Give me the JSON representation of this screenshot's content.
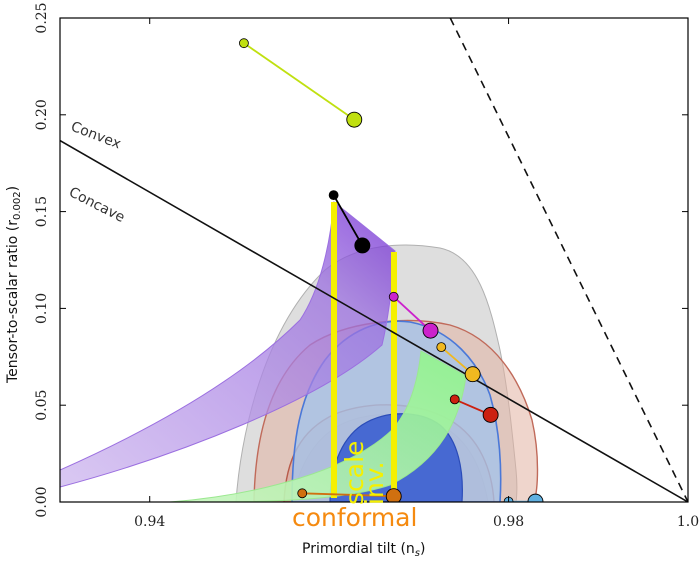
{
  "chart_data": {
    "type": "scatter",
    "xlim": [
      0.93,
      1.0
    ],
    "ylim": [
      0.0,
      0.25
    ],
    "x_ticks": [
      {
        "value": 0.94,
        "label": "0.94"
      },
      {
        "value": 0.98,
        "label": "0.98"
      },
      {
        "value": 1.0,
        "label": "1.0"
      }
    ],
    "y_ticks": [
      {
        "value": 0.0,
        "label": "0.00"
      },
      {
        "value": 0.05,
        "label": "0.05"
      },
      {
        "value": 0.1,
        "label": "0.10"
      },
      {
        "value": 0.15,
        "label": "0.15"
      },
      {
        "value": 0.2,
        "label": "0.20"
      },
      {
        "value": 0.25,
        "label": "0.25"
      }
    ],
    "xlabel": "Primordial tilt (n",
    "xlabel_sub": "s",
    "xlabel_end": ")",
    "ylabel": "Tensor-to-scalar ratio (r",
    "ylabel_sub": "0.002",
    "ylabel_end": ")",
    "grid": false,
    "reference_lines": [
      {
        "label": "Convex",
        "style": "solid",
        "points": [
          [
            0.93,
            0.1867
          ],
          [
            1.0,
            0.0
          ]
        ]
      },
      {
        "label": "",
        "style": "dashed",
        "points": [
          [
            0.9735,
            0.25
          ],
          [
            1.0,
            0.0
          ]
        ]
      }
    ],
    "region_labels": [
      {
        "text": "Convex",
        "x": 0.9315,
        "y": 0.198
      },
      {
        "text": "Concave",
        "x": 0.9315,
        "y": 0.165
      }
    ],
    "series": [
      {
        "color": "#c0e010",
        "points": [
          [
            0.9505,
            0.237
          ],
          [
            0.9628,
            0.1975
          ]
        ]
      },
      {
        "color": "#000000",
        "points": [
          [
            0.9605,
            0.1585
          ],
          [
            0.9637,
            0.1325
          ]
        ]
      },
      {
        "color": "#cc22cc",
        "points": [
          [
            0.9672,
            0.106
          ],
          [
            0.9713,
            0.0885
          ]
        ]
      },
      {
        "color": "#f0b820",
        "points": [
          [
            0.9725,
            0.08
          ],
          [
            0.976,
            0.066
          ]
        ]
      },
      {
        "color": "#cc2010",
        "points": [
          [
            0.974,
            0.053
          ],
          [
            0.978,
            0.045
          ]
        ]
      },
      {
        "color": "#d07010",
        "points": [
          [
            0.957,
            0.0045
          ],
          [
            0.9672,
            0.003
          ]
        ]
      },
      {
        "color": "#60b0e0",
        "points": [
          [
            0.98,
            0.0002
          ],
          [
            0.983,
            0.0002
          ]
        ]
      }
    ],
    "annotations": [
      {
        "text": "scale",
        "color": "#f5f000",
        "rotation": -90
      },
      {
        "text": "inv.",
        "color": "#f5f000",
        "rotation": -90
      },
      {
        "text": "conformal",
        "color": "#f58a10",
        "rotation": 0
      }
    ]
  }
}
